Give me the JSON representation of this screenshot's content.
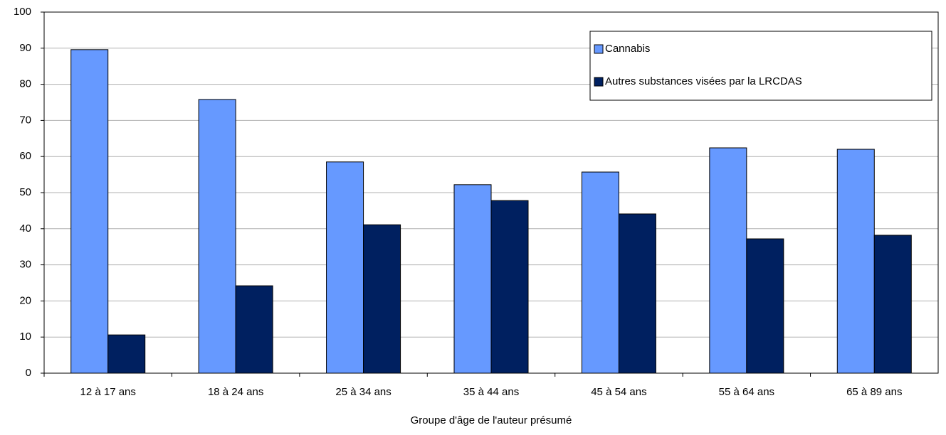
{
  "chart_data": {
    "type": "bar",
    "x_label": "Groupe d'âge de l'auteur présumé",
    "categories": [
      "12 à 17 ans",
      "18 à 24 ans",
      "25 à 34 ans",
      "35 à 44 ans",
      "45 à 54 ans",
      "55 à 64 ans",
      "65 à 89 ans"
    ],
    "series": [
      {
        "name": "Cannabis",
        "color": "#6699ff",
        "values": [
          89.6,
          75.8,
          58.5,
          52.2,
          55.7,
          62.4,
          62.0
        ]
      },
      {
        "name": "Autres substances visées par la LRCDAS",
        "color": "#002060",
        "values": [
          10.6,
          24.2,
          41.1,
          47.8,
          44.1,
          37.2,
          38.2
        ]
      }
    ],
    "ylim": [
      0,
      100
    ],
    "yticks": [
      0,
      10,
      20,
      30,
      40,
      50,
      60,
      70,
      80,
      90,
      100
    ],
    "grid": true,
    "legend": "top-right"
  }
}
